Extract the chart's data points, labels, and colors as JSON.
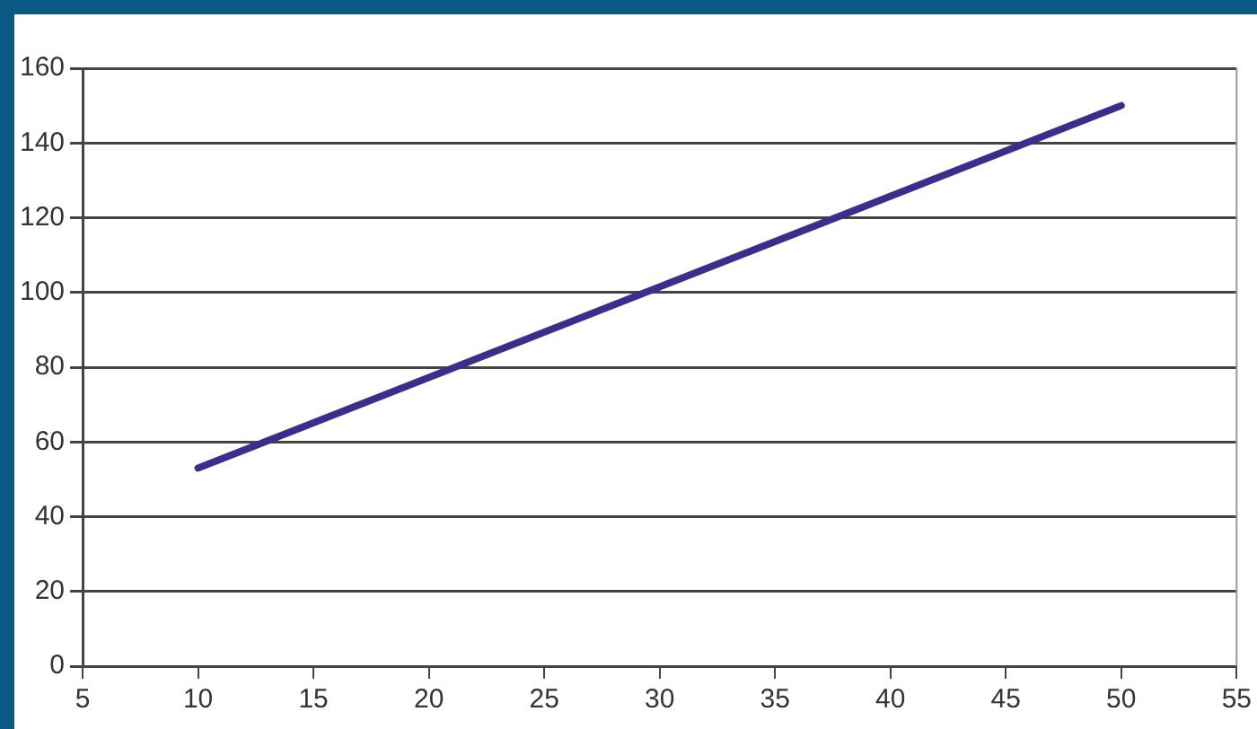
{
  "chart_data": {
    "type": "line",
    "x": [
      10,
      50
    ],
    "series": [
      {
        "color": "#3a2e8c",
        "values": [
          53,
          150
        ]
      }
    ],
    "xlim": [
      5,
      55
    ],
    "xticks": [
      5,
      10,
      15,
      20,
      25,
      30,
      35,
      40,
      45,
      50,
      55
    ],
    "ylim": [
      0,
      160
    ],
    "yticks": [
      0,
      20,
      40,
      60,
      80,
      100,
      120,
      140,
      160
    ],
    "grid": "y",
    "legend": false,
    "marker": "none",
    "line_style": "solid"
  }
}
